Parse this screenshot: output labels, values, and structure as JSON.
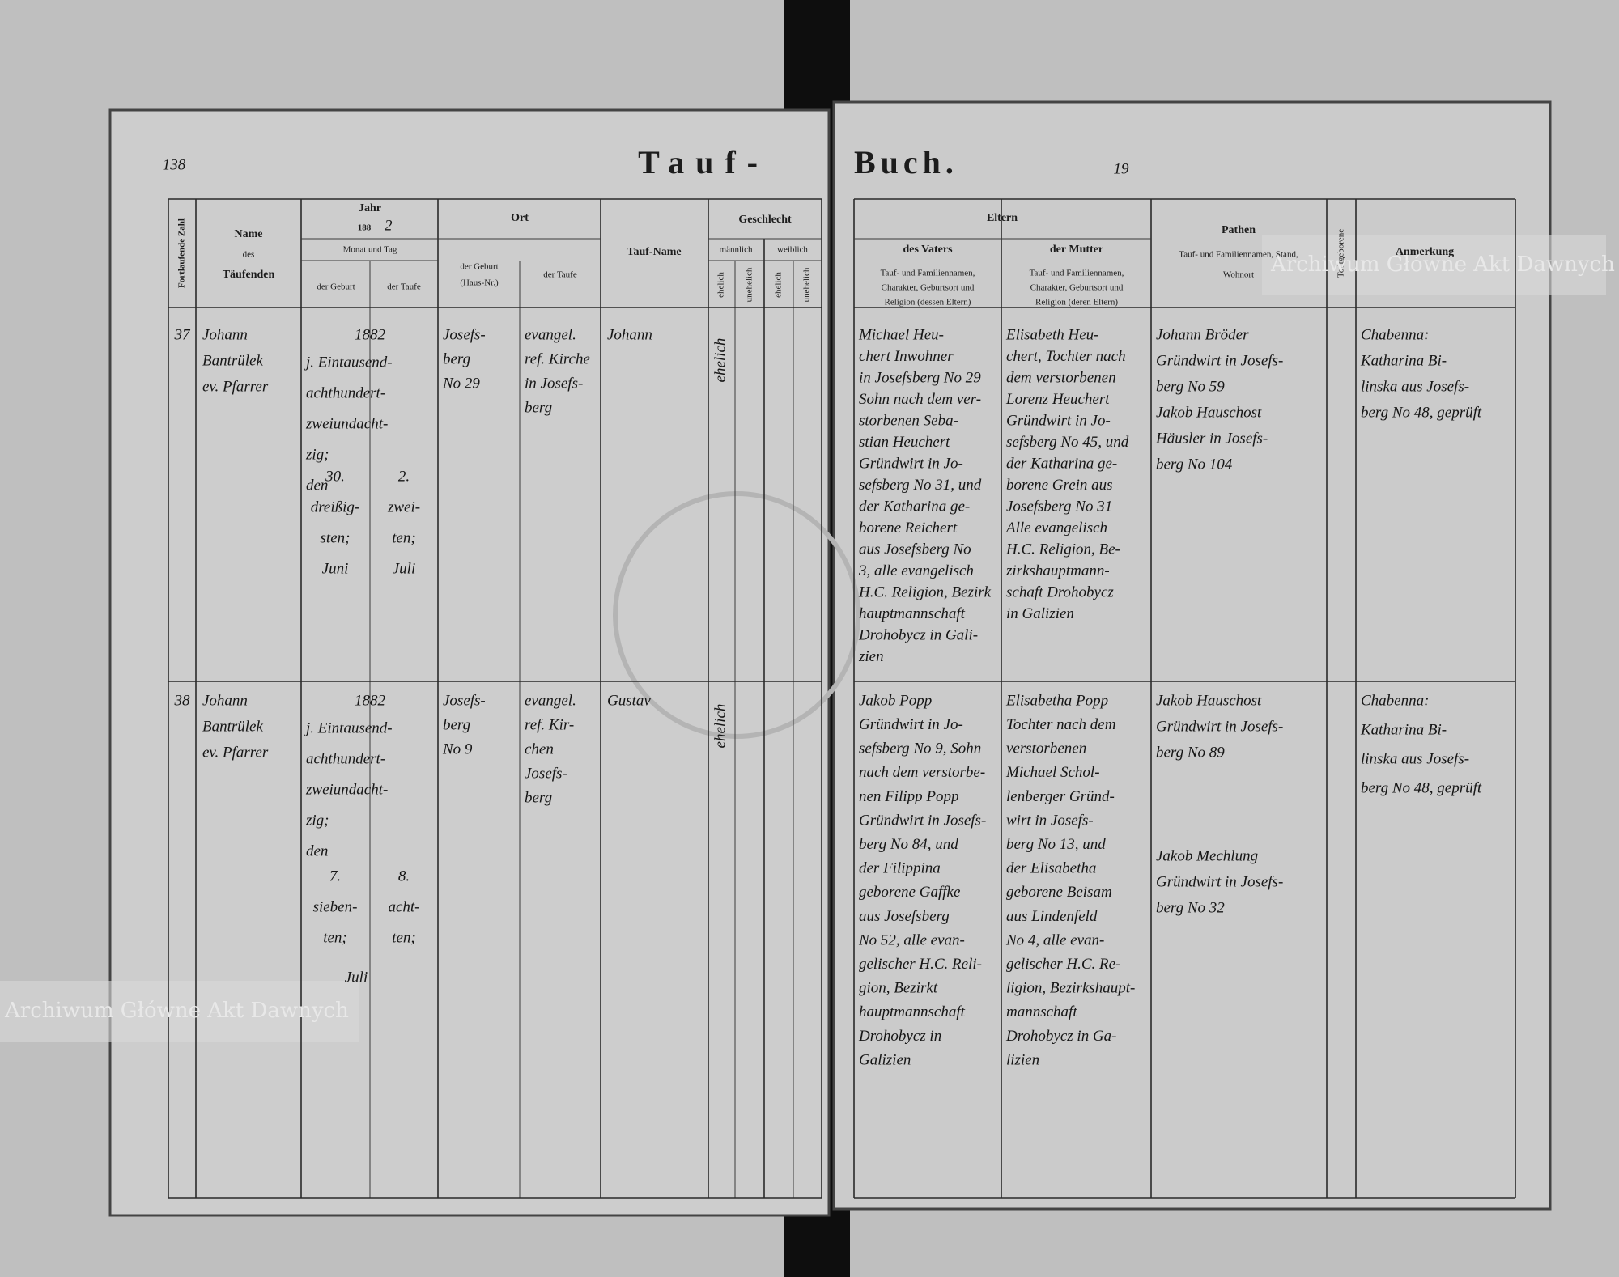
{
  "header": {
    "page_number_left": "138",
    "title_left": "Tauf-",
    "title_right": "Buch.",
    "page_number_right": "19"
  },
  "columns": {
    "number": "Fortlaufende Zahl",
    "name": "Name",
    "name_des": "des",
    "name_sub": "Täufenden",
    "year": "Jahr",
    "year_value": "188",
    "year_hand": "2",
    "month_day": "Monat und Tag",
    "birth": "der Geburt",
    "baptism": "der Taufe",
    "place": "Ort",
    "place_birth": "der Geburt",
    "place_birth_note": "(Haus-Nr.)",
    "place_baptism": "der Taufe",
    "baptism_name": "Tauf-Name",
    "sex": "Geschlecht",
    "male": "männlich",
    "female": "weiblich",
    "legit": "ehelich",
    "illegit": "unehelich",
    "parents": "Eltern",
    "father": "des Vaters",
    "mother": "der Mutter",
    "father_desc": [
      "Tauf- und Familiennamen,",
      "Charakter, Geburtsort und",
      "Religion (dessen Eltern)"
    ],
    "mother_desc": [
      "Tauf- und Familiennamen,",
      "Charakter, Geburtsort und",
      "Religion (deren Eltern)"
    ],
    "godparents": "Pathen",
    "godparents_desc": "Tauf- und Familiennamen, Stand,",
    "godparents_desc2": "Wohnort",
    "stillborn": "Todtgeborene",
    "remarks": "Anmerkung"
  },
  "entries": [
    {
      "number": "37",
      "name": [
        "Johann",
        "Bantrülek",
        "ev. Pfarrer"
      ],
      "year": "1882",
      "date_words": [
        "j. Eintausend-",
        "achthundert-",
        "zweiundacht-",
        "zig;",
        "den"
      ],
      "birth": [
        "30.",
        "dreißig-",
        "sten;",
        "Juni"
      ],
      "baptism": [
        "2.",
        "zwei-",
        "ten;",
        "Juli"
      ],
      "place_birth": [
        "Josefs-",
        "berg",
        "No 29"
      ],
      "place_baptism": [
        "evangel.",
        "ref. Kirche",
        "in Josefs-",
        "berg"
      ],
      "baptism_name": "Johann",
      "legit": "ehelich",
      "father": [
        "Michael Heu-",
        "chert Inwohner",
        "in Josefsberg No 29",
        "Sohn nach dem ver-",
        "storbenen Seba-",
        "stian Heuchert",
        "Gründwirt in Jo-",
        "sefsberg No 31, und",
        "der Katharina ge-",
        "borene Reichert",
        "aus Josefsberg No",
        "3, alle evangelisch",
        "H.C. Religion, Bezirk",
        "hauptmannschaft",
        "Drohobycz in Gali-",
        "zien"
      ],
      "mother": [
        "Elisabeth Heu-",
        "chert, Tochter nach",
        "dem verstorbenen",
        "Lorenz Heuchert",
        "Gründwirt in Jo-",
        "sefsberg No 45, und",
        "der Katharina ge-",
        "borene Grein aus",
        "Josefsberg No 31",
        "Alle evangelisch",
        "H.C. Religion, Be-",
        "zirkshauptmann-",
        "schaft Drohobycz",
        "in Galizien"
      ],
      "godparents": [
        [
          "Johann Bröder",
          "Gründwirt in Josefs-",
          "berg No 59"
        ],
        [
          "Jakob Hauschost",
          "Häusler in Josefs-",
          "berg No 104"
        ]
      ],
      "remarks": [
        "Chabenna:",
        "Katharina Bi-",
        "linska aus Josefs-",
        "berg No 48, geprüft"
      ]
    },
    {
      "number": "38",
      "name": [
        "Johann",
        "Bantrülek",
        "ev. Pfarrer"
      ],
      "year": "1882",
      "date_words": [
        "j. Eintausend-",
        "achthundert-",
        "zweiundacht-",
        "zig;",
        "den"
      ],
      "birth": [
        "7.",
        "sieben-",
        "ten;"
      ],
      "baptism": [
        "8.",
        "acht-",
        "ten;"
      ],
      "month": "Juli",
      "place_birth": [
        "Josefs-",
        "berg",
        "No 9"
      ],
      "place_baptism": [
        "evangel.",
        "ref. Kir-",
        "chen",
        "Josefs-",
        "berg"
      ],
      "baptism_name": "Gustav",
      "legit": "ehelich",
      "father": [
        "Jakob Popp",
        "Gründwirt in Jo-",
        "sefsberg No 9, Sohn",
        "nach dem verstorbe-",
        "nen Filipp Popp",
        "Gründwirt in Josefs-",
        "berg No 84, und",
        "der Filippina",
        "geborene Gaffke",
        "aus Josefsberg",
        "No 52, alle evan-",
        "gelischer H.C. Reli-",
        "gion, Bezirkt",
        "hauptmannschaft",
        "Drohobycz in",
        "Galizien"
      ],
      "mother": [
        "Elisabetha Popp",
        "Tochter nach dem",
        "verstorbenen",
        "Michael Schol-",
        "lenberger Gründ-",
        "wirt in Josefs-",
        "berg No 13, und",
        "der Elisabetha",
        "geborene Beisam",
        "aus Lindenfeld",
        "No 4, alle evan-",
        "gelischer H.C. Re-",
        "ligion, Bezirkshaupt-",
        "mannschaft",
        "Drohobycz in Ga-",
        "lizien"
      ],
      "godparents": [
        [
          "Jakob Hauschost",
          "Gründwirt in Josefs-",
          "berg No 89"
        ],
        [
          "Jakob Mechlung",
          "Gründwirt in Josefs-",
          "berg No 32"
        ]
      ],
      "remarks": [
        "Chabenna:",
        "Katharina Bi-",
        "linska aus Josefs-",
        "berg No 48, geprüft"
      ]
    }
  ],
  "watermark": "Archiwum Główne Akt Dawnych"
}
